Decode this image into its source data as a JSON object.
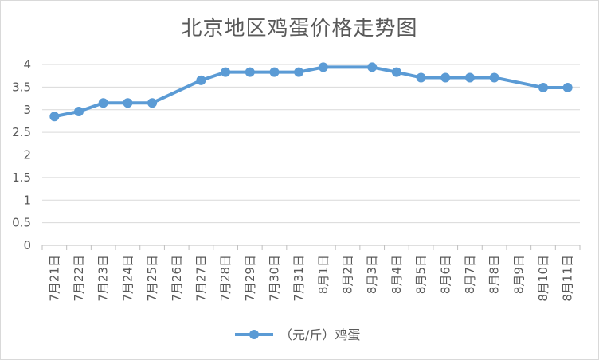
{
  "chart_data": {
    "type": "line",
    "title": "北京地区鸡蛋价格走势图",
    "xlabel": "",
    "ylabel": "",
    "categories": [
      "7月21日",
      "7月22日",
      "7月23日",
      "7月24日",
      "7月25日",
      "7月26日",
      "7月27日",
      "7月28日",
      "7月29日",
      "7月30日",
      "7月31日",
      "8月1日",
      "8月2日",
      "8月3日",
      "8月4日",
      "8月5日",
      "8月6日",
      "8月7日",
      "8月8日",
      "8月9日",
      "8月10日",
      "8月11日"
    ],
    "series": [
      {
        "name": "（元/斤）鸡蛋",
        "color": "#5b9bd5",
        "values": [
          2.85,
          2.96,
          3.15,
          3.15,
          3.15,
          null,
          3.65,
          3.83,
          3.83,
          3.83,
          3.83,
          3.94,
          null,
          3.94,
          3.83,
          3.71,
          3.71,
          3.71,
          3.71,
          null,
          3.49,
          3.49
        ]
      }
    ],
    "ylim": [
      0,
      4
    ],
    "yticks": [
      "0",
      "0.5",
      "1",
      "1.5",
      "2",
      "2.5",
      "3",
      "3.5",
      "4"
    ],
    "grid": true,
    "legend": "bottom"
  }
}
